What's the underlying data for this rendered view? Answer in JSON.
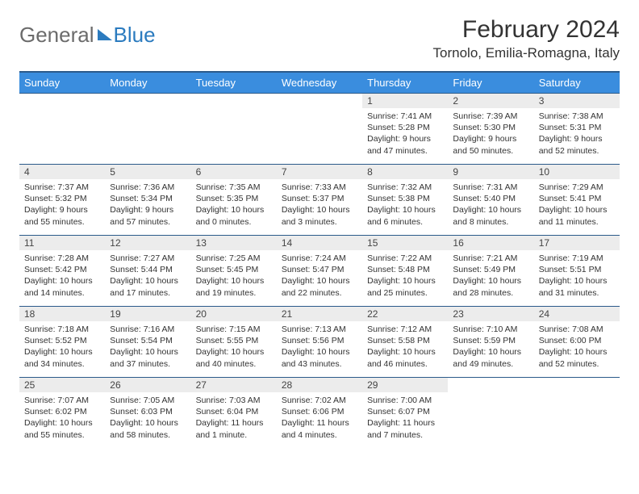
{
  "logo": {
    "text1": "General",
    "text2": "Blue"
  },
  "title": "February 2024",
  "location": "Tornolo, Emilia-Romagna, Italy",
  "colors": {
    "header_bg": "#3a8dde",
    "header_border": "#2b5a8a",
    "daynum_bg": "#ececec",
    "row_border": "#2b5a8a",
    "logo_gray": "#6b6b6b",
    "logo_blue": "#2b7bbf"
  },
  "weekdays": [
    "Sunday",
    "Monday",
    "Tuesday",
    "Wednesday",
    "Thursday",
    "Friday",
    "Saturday"
  ],
  "weeks": [
    [
      null,
      null,
      null,
      null,
      {
        "d": "1",
        "sr": "Sunrise: 7:41 AM",
        "ss": "Sunset: 5:28 PM",
        "dl1": "Daylight: 9 hours",
        "dl2": "and 47 minutes."
      },
      {
        "d": "2",
        "sr": "Sunrise: 7:39 AM",
        "ss": "Sunset: 5:30 PM",
        "dl1": "Daylight: 9 hours",
        "dl2": "and 50 minutes."
      },
      {
        "d": "3",
        "sr": "Sunrise: 7:38 AM",
        "ss": "Sunset: 5:31 PM",
        "dl1": "Daylight: 9 hours",
        "dl2": "and 52 minutes."
      }
    ],
    [
      {
        "d": "4",
        "sr": "Sunrise: 7:37 AM",
        "ss": "Sunset: 5:32 PM",
        "dl1": "Daylight: 9 hours",
        "dl2": "and 55 minutes."
      },
      {
        "d": "5",
        "sr": "Sunrise: 7:36 AM",
        "ss": "Sunset: 5:34 PM",
        "dl1": "Daylight: 9 hours",
        "dl2": "and 57 minutes."
      },
      {
        "d": "6",
        "sr": "Sunrise: 7:35 AM",
        "ss": "Sunset: 5:35 PM",
        "dl1": "Daylight: 10 hours",
        "dl2": "and 0 minutes."
      },
      {
        "d": "7",
        "sr": "Sunrise: 7:33 AM",
        "ss": "Sunset: 5:37 PM",
        "dl1": "Daylight: 10 hours",
        "dl2": "and 3 minutes."
      },
      {
        "d": "8",
        "sr": "Sunrise: 7:32 AM",
        "ss": "Sunset: 5:38 PM",
        "dl1": "Daylight: 10 hours",
        "dl2": "and 6 minutes."
      },
      {
        "d": "9",
        "sr": "Sunrise: 7:31 AM",
        "ss": "Sunset: 5:40 PM",
        "dl1": "Daylight: 10 hours",
        "dl2": "and 8 minutes."
      },
      {
        "d": "10",
        "sr": "Sunrise: 7:29 AM",
        "ss": "Sunset: 5:41 PM",
        "dl1": "Daylight: 10 hours",
        "dl2": "and 11 minutes."
      }
    ],
    [
      {
        "d": "11",
        "sr": "Sunrise: 7:28 AM",
        "ss": "Sunset: 5:42 PM",
        "dl1": "Daylight: 10 hours",
        "dl2": "and 14 minutes."
      },
      {
        "d": "12",
        "sr": "Sunrise: 7:27 AM",
        "ss": "Sunset: 5:44 PM",
        "dl1": "Daylight: 10 hours",
        "dl2": "and 17 minutes."
      },
      {
        "d": "13",
        "sr": "Sunrise: 7:25 AM",
        "ss": "Sunset: 5:45 PM",
        "dl1": "Daylight: 10 hours",
        "dl2": "and 19 minutes."
      },
      {
        "d": "14",
        "sr": "Sunrise: 7:24 AM",
        "ss": "Sunset: 5:47 PM",
        "dl1": "Daylight: 10 hours",
        "dl2": "and 22 minutes."
      },
      {
        "d": "15",
        "sr": "Sunrise: 7:22 AM",
        "ss": "Sunset: 5:48 PM",
        "dl1": "Daylight: 10 hours",
        "dl2": "and 25 minutes."
      },
      {
        "d": "16",
        "sr": "Sunrise: 7:21 AM",
        "ss": "Sunset: 5:49 PM",
        "dl1": "Daylight: 10 hours",
        "dl2": "and 28 minutes."
      },
      {
        "d": "17",
        "sr": "Sunrise: 7:19 AM",
        "ss": "Sunset: 5:51 PM",
        "dl1": "Daylight: 10 hours",
        "dl2": "and 31 minutes."
      }
    ],
    [
      {
        "d": "18",
        "sr": "Sunrise: 7:18 AM",
        "ss": "Sunset: 5:52 PM",
        "dl1": "Daylight: 10 hours",
        "dl2": "and 34 minutes."
      },
      {
        "d": "19",
        "sr": "Sunrise: 7:16 AM",
        "ss": "Sunset: 5:54 PM",
        "dl1": "Daylight: 10 hours",
        "dl2": "and 37 minutes."
      },
      {
        "d": "20",
        "sr": "Sunrise: 7:15 AM",
        "ss": "Sunset: 5:55 PM",
        "dl1": "Daylight: 10 hours",
        "dl2": "and 40 minutes."
      },
      {
        "d": "21",
        "sr": "Sunrise: 7:13 AM",
        "ss": "Sunset: 5:56 PM",
        "dl1": "Daylight: 10 hours",
        "dl2": "and 43 minutes."
      },
      {
        "d": "22",
        "sr": "Sunrise: 7:12 AM",
        "ss": "Sunset: 5:58 PM",
        "dl1": "Daylight: 10 hours",
        "dl2": "and 46 minutes."
      },
      {
        "d": "23",
        "sr": "Sunrise: 7:10 AM",
        "ss": "Sunset: 5:59 PM",
        "dl1": "Daylight: 10 hours",
        "dl2": "and 49 minutes."
      },
      {
        "d": "24",
        "sr": "Sunrise: 7:08 AM",
        "ss": "Sunset: 6:00 PM",
        "dl1": "Daylight: 10 hours",
        "dl2": "and 52 minutes."
      }
    ],
    [
      {
        "d": "25",
        "sr": "Sunrise: 7:07 AM",
        "ss": "Sunset: 6:02 PM",
        "dl1": "Daylight: 10 hours",
        "dl2": "and 55 minutes."
      },
      {
        "d": "26",
        "sr": "Sunrise: 7:05 AM",
        "ss": "Sunset: 6:03 PM",
        "dl1": "Daylight: 10 hours",
        "dl2": "and 58 minutes."
      },
      {
        "d": "27",
        "sr": "Sunrise: 7:03 AM",
        "ss": "Sunset: 6:04 PM",
        "dl1": "Daylight: 11 hours",
        "dl2": "and 1 minute."
      },
      {
        "d": "28",
        "sr": "Sunrise: 7:02 AM",
        "ss": "Sunset: 6:06 PM",
        "dl1": "Daylight: 11 hours",
        "dl2": "and 4 minutes."
      },
      {
        "d": "29",
        "sr": "Sunrise: 7:00 AM",
        "ss": "Sunset: 6:07 PM",
        "dl1": "Daylight: 11 hours",
        "dl2": "and 7 minutes."
      },
      null,
      null
    ]
  ]
}
